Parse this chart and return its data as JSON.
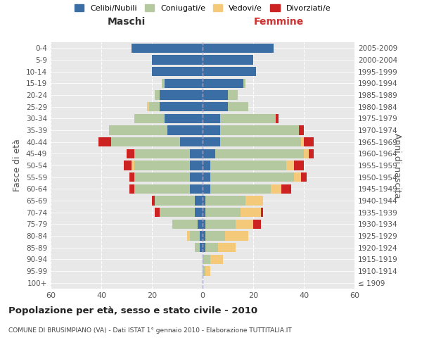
{
  "age_groups": [
    "100+",
    "95-99",
    "90-94",
    "85-89",
    "80-84",
    "75-79",
    "70-74",
    "65-69",
    "60-64",
    "55-59",
    "50-54",
    "45-49",
    "40-44",
    "35-39",
    "30-34",
    "25-29",
    "20-24",
    "15-19",
    "10-14",
    "5-9",
    "0-4"
  ],
  "birth_years": [
    "≤ 1909",
    "1910-1914",
    "1915-1919",
    "1920-1924",
    "1925-1929",
    "1930-1934",
    "1935-1939",
    "1940-1944",
    "1945-1949",
    "1950-1954",
    "1955-1959",
    "1960-1964",
    "1965-1969",
    "1970-1974",
    "1975-1979",
    "1980-1984",
    "1985-1989",
    "1990-1994",
    "1995-1999",
    "2000-2004",
    "2005-2009"
  ],
  "colors": {
    "celibe": "#3a6ea5",
    "coniugato": "#b5c9a0",
    "vedovo": "#f5c97a",
    "divorziato": "#cc2222"
  },
  "maschi": {
    "celibe": [
      0,
      0,
      0,
      1,
      1,
      2,
      3,
      3,
      5,
      5,
      5,
      5,
      9,
      14,
      15,
      17,
      17,
      15,
      20,
      20,
      28
    ],
    "coniugato": [
      0,
      0,
      0,
      2,
      4,
      10,
      14,
      16,
      22,
      22,
      22,
      22,
      27,
      23,
      12,
      4,
      2,
      1,
      0,
      0,
      0
    ],
    "vedovo": [
      0,
      0,
      0,
      0,
      1,
      0,
      0,
      0,
      0,
      0,
      1,
      0,
      0,
      0,
      0,
      1,
      0,
      0,
      0,
      0,
      0
    ],
    "divorziato": [
      0,
      0,
      0,
      0,
      0,
      0,
      2,
      1,
      2,
      2,
      3,
      3,
      5,
      0,
      0,
      0,
      0,
      0,
      0,
      0,
      0
    ]
  },
  "femmine": {
    "celibe": [
      0,
      0,
      0,
      1,
      1,
      1,
      1,
      1,
      3,
      3,
      3,
      5,
      7,
      7,
      7,
      10,
      10,
      16,
      21,
      20,
      28
    ],
    "coniugato": [
      0,
      1,
      3,
      5,
      8,
      12,
      14,
      16,
      24,
      33,
      30,
      35,
      32,
      31,
      22,
      8,
      4,
      1,
      0,
      0,
      0
    ],
    "vedovo": [
      0,
      2,
      5,
      7,
      9,
      7,
      8,
      7,
      4,
      3,
      3,
      2,
      1,
      0,
      0,
      0,
      0,
      0,
      0,
      0,
      0
    ],
    "divorziato": [
      0,
      0,
      0,
      0,
      0,
      3,
      1,
      0,
      4,
      2,
      4,
      2,
      4,
      2,
      1,
      0,
      0,
      0,
      0,
      0,
      0
    ]
  },
  "xlim": 60,
  "title": "Popolazione per età, sesso e stato civile - 2010",
  "subtitle": "COMUNE DI BRUSIMPIANO (VA) - Dati ISTAT 1° gennaio 2010 - Elaborazione TUTTITALIA.IT",
  "ylabel_left": "Fasce di età",
  "ylabel_right": "Anni di nascita",
  "xlabel_left": "Maschi",
  "xlabel_right": "Femmine"
}
